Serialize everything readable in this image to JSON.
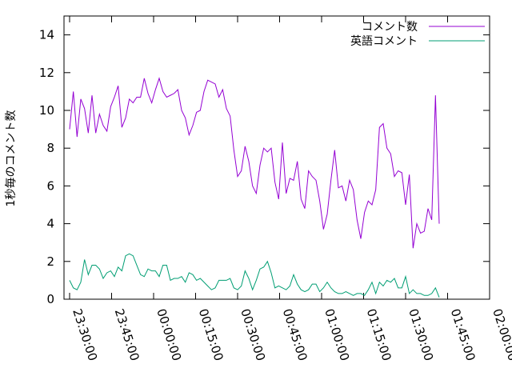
{
  "chart_data": {
    "type": "line",
    "title": "",
    "xlabel": "",
    "ylabel": "1秒毎のコメント数",
    "xlim": [
      "23:28:00",
      "02:00:00"
    ],
    "ylim": [
      0,
      15
    ],
    "x_ticks": [
      "23:30:00",
      "23:45:00",
      "00:00:00",
      "00:15:00",
      "00:30:00",
      "00:45:00",
      "01:00:00",
      "01:15:00",
      "01:30:00",
      "01:45:00",
      "02:00:00"
    ],
    "y_ticks": [
      0,
      2,
      4,
      6,
      8,
      10,
      12,
      14
    ],
    "grid": false,
    "legend_position": "top-right",
    "series": [
      {
        "name": "コメント数",
        "color": "#9400d3",
        "points": [
          [
            "23:30:00",
            9.0
          ],
          [
            "23:31:20",
            11.0
          ],
          [
            "23:32:40",
            8.6
          ],
          [
            "23:34:00",
            10.6
          ],
          [
            "23:35:20",
            10.1
          ],
          [
            "23:36:40",
            8.8
          ],
          [
            "23:38:00",
            10.8
          ],
          [
            "23:39:20",
            8.8
          ],
          [
            "23:40:40",
            9.8
          ],
          [
            "23:42:00",
            9.2
          ],
          [
            "23:43:20",
            8.9
          ],
          [
            "23:44:40",
            10.2
          ],
          [
            "23:46:00",
            10.7
          ],
          [
            "23:47:20",
            11.3
          ],
          [
            "23:48:40",
            9.1
          ],
          [
            "23:50:00",
            9.6
          ],
          [
            "23:51:20",
            10.6
          ],
          [
            "23:52:40",
            10.4
          ],
          [
            "23:54:00",
            10.7
          ],
          [
            "23:55:20",
            10.7
          ],
          [
            "23:56:40",
            11.7
          ],
          [
            "23:58:00",
            10.9
          ],
          [
            "23:59:20",
            10.4
          ],
          [
            "00:00:40",
            11.1
          ],
          [
            "00:02:00",
            11.7
          ],
          [
            "00:03:20",
            11.0
          ],
          [
            "00:04:40",
            10.7
          ],
          [
            "00:06:00",
            10.8
          ],
          [
            "00:07:20",
            10.9
          ],
          [
            "00:08:40",
            11.1
          ],
          [
            "00:10:00",
            10.0
          ],
          [
            "00:11:20",
            9.6
          ],
          [
            "00:12:40",
            8.7
          ],
          [
            "00:14:00",
            9.2
          ],
          [
            "00:15:20",
            9.9
          ],
          [
            "00:16:40",
            10.0
          ],
          [
            "00:18:00",
            11.0
          ],
          [
            "00:19:20",
            11.6
          ],
          [
            "00:20:40",
            11.5
          ],
          [
            "00:22:00",
            11.4
          ],
          [
            "00:23:20",
            10.7
          ],
          [
            "00:24:40",
            11.1
          ],
          [
            "00:26:00",
            10.1
          ],
          [
            "00:27:20",
            9.7
          ],
          [
            "00:28:40",
            7.9
          ],
          [
            "00:30:00",
            6.5
          ],
          [
            "00:31:20",
            6.8
          ],
          [
            "00:32:40",
            8.1
          ],
          [
            "00:34:00",
            7.3
          ],
          [
            "00:35:20",
            6.0
          ],
          [
            "00:36:40",
            5.6
          ],
          [
            "00:38:00",
            7.1
          ],
          [
            "00:39:20",
            8.0
          ],
          [
            "00:40:40",
            7.8
          ],
          [
            "00:42:00",
            8.0
          ],
          [
            "00:43:20",
            6.2
          ],
          [
            "00:44:40",
            5.3
          ],
          [
            "00:46:00",
            8.3
          ],
          [
            "00:47:20",
            5.6
          ],
          [
            "00:48:40",
            6.4
          ],
          [
            "00:50:00",
            6.3
          ],
          [
            "00:51:20",
            7.3
          ],
          [
            "00:52:40",
            5.3
          ],
          [
            "00:54:00",
            4.8
          ],
          [
            "00:55:20",
            6.8
          ],
          [
            "00:56:40",
            6.5
          ],
          [
            "00:58:00",
            6.3
          ],
          [
            "00:59:20",
            5.2
          ],
          [
            "01:00:40",
            3.7
          ],
          [
            "01:02:00",
            4.5
          ],
          [
            "01:03:20",
            6.3
          ],
          [
            "01:04:40",
            7.9
          ],
          [
            "01:06:00",
            5.9
          ],
          [
            "01:07:20",
            6.0
          ],
          [
            "01:08:40",
            5.2
          ],
          [
            "01:10:00",
            6.3
          ],
          [
            "01:11:20",
            5.8
          ],
          [
            "01:12:40",
            4.2
          ],
          [
            "01:14:00",
            3.2
          ],
          [
            "01:15:20",
            4.6
          ],
          [
            "01:16:40",
            5.2
          ],
          [
            "01:18:00",
            5.0
          ],
          [
            "01:19:20",
            5.8
          ],
          [
            "01:20:40",
            9.1
          ],
          [
            "01:22:00",
            9.3
          ],
          [
            "01:23:20",
            8.0
          ],
          [
            "01:24:40",
            7.7
          ],
          [
            "01:26:00",
            6.5
          ],
          [
            "01:27:20",
            6.8
          ],
          [
            "01:28:40",
            6.7
          ],
          [
            "01:30:00",
            5.0
          ],
          [
            "01:31:20",
            6.6
          ],
          [
            "01:32:40",
            2.7
          ],
          [
            "01:34:00",
            4.0
          ],
          [
            "01:35:20",
            3.5
          ],
          [
            "01:36:40",
            3.6
          ],
          [
            "01:38:00",
            4.8
          ],
          [
            "01:39:20",
            4.2
          ],
          [
            "01:40:40",
            10.8
          ],
          [
            "01:42:00",
            4.0
          ]
        ]
      },
      {
        "name": "英語コメント",
        "color": "#009e73",
        "points": [
          [
            "23:30:00",
            1.0
          ],
          [
            "23:31:20",
            0.6
          ],
          [
            "23:32:40",
            0.5
          ],
          [
            "23:34:00",
            0.9
          ],
          [
            "23:35:20",
            2.1
          ],
          [
            "23:36:40",
            1.3
          ],
          [
            "23:38:00",
            1.8
          ],
          [
            "23:39:20",
            1.8
          ],
          [
            "23:40:40",
            1.6
          ],
          [
            "23:42:00",
            1.1
          ],
          [
            "23:43:20",
            1.4
          ],
          [
            "23:44:40",
            1.5
          ],
          [
            "23:46:00",
            1.2
          ],
          [
            "23:47:20",
            1.7
          ],
          [
            "23:48:40",
            1.5
          ],
          [
            "23:50:00",
            2.3
          ],
          [
            "23:51:20",
            2.4
          ],
          [
            "23:52:40",
            2.3
          ],
          [
            "23:54:00",
            1.8
          ],
          [
            "23:55:20",
            1.3
          ],
          [
            "23:56:40",
            1.2
          ],
          [
            "23:58:00",
            1.6
          ],
          [
            "23:59:20",
            1.5
          ],
          [
            "00:00:40",
            1.5
          ],
          [
            "00:02:00",
            1.2
          ],
          [
            "00:03:20",
            1.8
          ],
          [
            "00:04:40",
            1.8
          ],
          [
            "00:06:00",
            1.0
          ],
          [
            "00:07:20",
            1.1
          ],
          [
            "00:08:40",
            1.1
          ],
          [
            "00:10:00",
            1.2
          ],
          [
            "00:11:20",
            0.9
          ],
          [
            "00:12:40",
            1.4
          ],
          [
            "00:14:00",
            1.3
          ],
          [
            "00:15:20",
            1.0
          ],
          [
            "00:16:40",
            1.1
          ],
          [
            "00:18:00",
            0.9
          ],
          [
            "00:19:20",
            0.7
          ],
          [
            "00:20:40",
            0.5
          ],
          [
            "00:22:00",
            0.6
          ],
          [
            "00:23:20",
            1.0
          ],
          [
            "00:24:40",
            1.0
          ],
          [
            "00:26:00",
            1.0
          ],
          [
            "00:27:20",
            1.1
          ],
          [
            "00:28:40",
            0.6
          ],
          [
            "00:30:00",
            0.5
          ],
          [
            "00:31:20",
            0.7
          ],
          [
            "00:32:40",
            1.5
          ],
          [
            "00:34:00",
            1.1
          ],
          [
            "00:35:20",
            0.5
          ],
          [
            "00:36:40",
            1.0
          ],
          [
            "00:38:00",
            1.6
          ],
          [
            "00:39:20",
            1.7
          ],
          [
            "00:40:40",
            2.0
          ],
          [
            "00:42:00",
            1.4
          ],
          [
            "00:43:20",
            0.6
          ],
          [
            "00:44:40",
            0.7
          ],
          [
            "00:46:00",
            0.6
          ],
          [
            "00:47:20",
            0.5
          ],
          [
            "00:48:40",
            0.7
          ],
          [
            "00:50:00",
            1.3
          ],
          [
            "00:51:20",
            0.8
          ],
          [
            "00:52:40",
            0.5
          ],
          [
            "00:54:00",
            0.4
          ],
          [
            "00:55:20",
            0.5
          ],
          [
            "00:56:40",
            0.8
          ],
          [
            "00:58:00",
            0.8
          ],
          [
            "00:59:20",
            0.4
          ],
          [
            "01:00:40",
            0.6
          ],
          [
            "01:02:00",
            0.9
          ],
          [
            "01:03:20",
            0.6
          ],
          [
            "01:04:40",
            0.4
          ],
          [
            "01:06:00",
            0.3
          ],
          [
            "01:07:20",
            0.3
          ],
          [
            "01:08:40",
            0.4
          ],
          [
            "01:10:00",
            0.3
          ],
          [
            "01:11:20",
            0.2
          ],
          [
            "01:12:40",
            0.3
          ],
          [
            "01:14:00",
            0.3
          ],
          [
            "01:15:20",
            0.2
          ],
          [
            "01:16:40",
            0.5
          ],
          [
            "01:18:00",
            0.9
          ],
          [
            "01:19:20",
            0.3
          ],
          [
            "01:20:40",
            0.9
          ],
          [
            "01:22:00",
            0.7
          ],
          [
            "01:23:20",
            1.0
          ],
          [
            "01:24:40",
            0.9
          ],
          [
            "01:26:00",
            1.1
          ],
          [
            "01:27:20",
            0.6
          ],
          [
            "01:28:40",
            0.6
          ],
          [
            "01:30:00",
            1.2
          ],
          [
            "01:31:20",
            0.3
          ],
          [
            "01:32:40",
            0.5
          ],
          [
            "01:34:00",
            0.3
          ],
          [
            "01:35:20",
            0.3
          ],
          [
            "01:36:40",
            0.2
          ],
          [
            "01:38:00",
            0.2
          ],
          [
            "01:39:20",
            0.3
          ],
          [
            "01:40:40",
            0.6
          ],
          [
            "01:42:00",
            0.1
          ]
        ]
      }
    ]
  }
}
